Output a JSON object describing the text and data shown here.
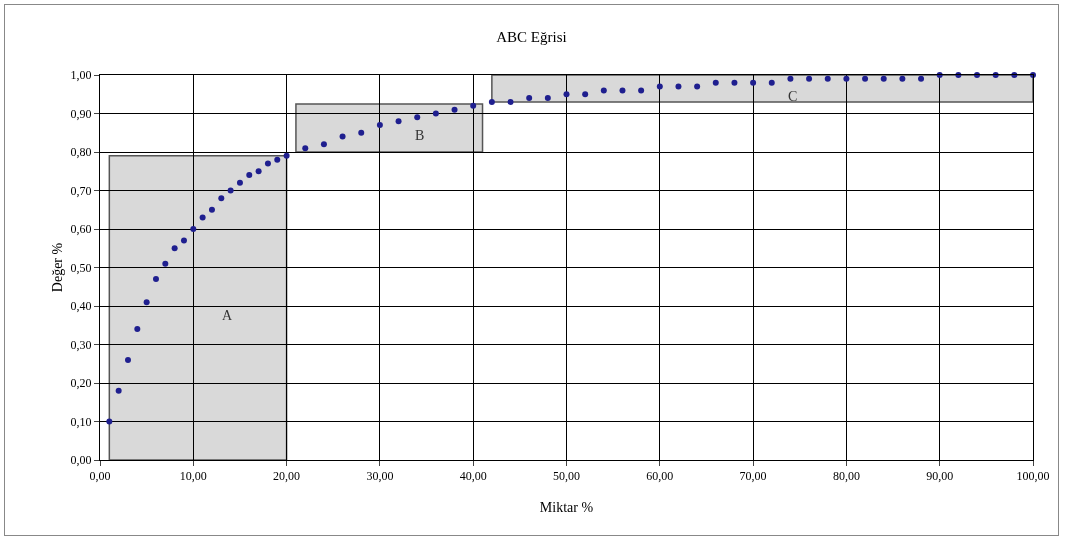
{
  "chart_data": {
    "type": "scatter",
    "title": "ABC Eğrisi",
    "xlabel": "Miktar %",
    "ylabel": "Değer %",
    "x": [
      1,
      2,
      3,
      4,
      5,
      6,
      7,
      8,
      9,
      10,
      11,
      12,
      13,
      14,
      15,
      16,
      17,
      18,
      19,
      20,
      22,
      24,
      26,
      28,
      30,
      32,
      34,
      36,
      38,
      40,
      42,
      44,
      46,
      48,
      50,
      52,
      54,
      56,
      58,
      60,
      62,
      64,
      66,
      68,
      70,
      72,
      74,
      76,
      78,
      80,
      82,
      84,
      86,
      88,
      90,
      92,
      94,
      96,
      98,
      100
    ],
    "series": [
      {
        "color": "#1f1f8f",
        "values": [
          0.1,
          0.18,
          0.26,
          0.34,
          0.41,
          0.47,
          0.51,
          0.55,
          0.57,
          0.6,
          0.63,
          0.65,
          0.68,
          0.7,
          0.72,
          0.74,
          0.75,
          0.77,
          0.78,
          0.79,
          0.81,
          0.82,
          0.84,
          0.85,
          0.87,
          0.88,
          0.89,
          0.9,
          0.91,
          0.92,
          0.93,
          0.93,
          0.94,
          0.94,
          0.95,
          0.95,
          0.96,
          0.96,
          0.96,
          0.97,
          0.97,
          0.97,
          0.98,
          0.98,
          0.98,
          0.98,
          0.99,
          0.99,
          0.99,
          0.99,
          0.99,
          0.99,
          0.99,
          0.99,
          1.0,
          1.0,
          1.0,
          1.0,
          1.0,
          1.0
        ]
      }
    ],
    "xlim": [
      0,
      100
    ],
    "ylim": [
      0,
      1
    ],
    "xticks": [
      {
        "value": 0,
        "label": "0,00"
      },
      {
        "value": 10,
        "label": "10,00"
      },
      {
        "value": 20,
        "label": "20,00"
      },
      {
        "value": 30,
        "label": "30,00"
      },
      {
        "value": 40,
        "label": "40,00"
      },
      {
        "value": 50,
        "label": "50,00"
      },
      {
        "value": 60,
        "label": "60,00"
      },
      {
        "value": 70,
        "label": "70,00"
      },
      {
        "value": 80,
        "label": "80,00"
      },
      {
        "value": 90,
        "label": "90,00"
      },
      {
        "value": 100,
        "label": "100,00"
      }
    ],
    "yticks": [
      {
        "value": 0,
        "label": "0,00"
      },
      {
        "value": 0.1,
        "label": "0,10"
      },
      {
        "value": 0.2,
        "label": "0,20"
      },
      {
        "value": 0.3,
        "label": "0,30"
      },
      {
        "value": 0.4,
        "label": "0,40"
      },
      {
        "value": 0.5,
        "label": "0,50"
      },
      {
        "value": 0.6,
        "label": "0,60"
      },
      {
        "value": 0.7,
        "label": "0,70"
      },
      {
        "value": 0.8,
        "label": "0,80"
      },
      {
        "value": 0.9,
        "label": "0,90"
      },
      {
        "value": 1,
        "label": "1,00"
      }
    ],
    "bands": [
      {
        "axis": "x",
        "from": 1,
        "to": 20,
        "label": "A",
        "color": "#d9d9d9"
      },
      {
        "axis": "x",
        "from": 21,
        "to": 41,
        "label": "B",
        "color": "#d9d9d9"
      },
      {
        "axis": "x",
        "from": 42,
        "to": 100,
        "label": "C",
        "color": "#d9d9d9"
      }
    ],
    "grid": true,
    "marker": "circle"
  }
}
